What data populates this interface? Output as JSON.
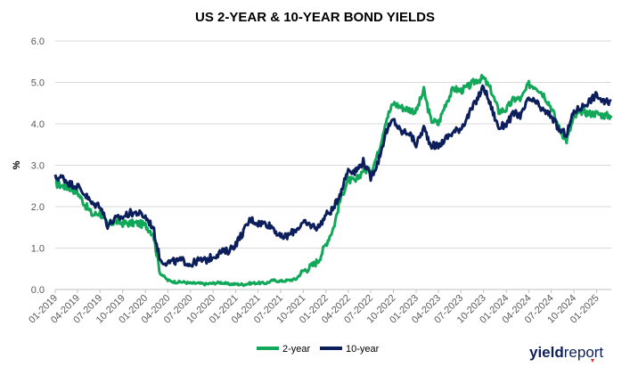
{
  "chart_data": {
    "type": "line",
    "title": "US 2-YEAR & 10-YEAR BOND YIELDS",
    "ylabel": "%",
    "xlabel": "",
    "ylim": [
      0,
      6
    ],
    "yticks": [
      "0.0",
      "1.0",
      "2.0",
      "3.0",
      "4.0",
      "5.0",
      "6.0"
    ],
    "xticks": [
      "01-2019",
      "04-2019",
      "07-2019",
      "10-2019",
      "01-2020",
      "04-2020",
      "07-2020",
      "10-2020",
      "01-2021",
      "04-2021",
      "07-2021",
      "10-2021",
      "01-2022",
      "04-2022",
      "07-2022",
      "10-2022",
      "01-2023",
      "04-2023",
      "07-2023",
      "10-2023",
      "01-2024",
      "04-2024",
      "07-2024",
      "10-2024",
      "01-2025"
    ],
    "grid": true,
    "legend_position": "bottom",
    "colors": {
      "2-year": "#12a85a",
      "10-year": "#0c1f5c"
    },
    "series": [
      {
        "name": "2-year",
        "x": [
          "2019-01",
          "2019-02",
          "2019-03",
          "2019-04",
          "2019-05",
          "2019-06",
          "2019-07",
          "2019-08",
          "2019-09",
          "2019-10",
          "2019-11",
          "2019-12",
          "2020-01",
          "2020-02",
          "2020-03",
          "2020-04",
          "2020-05",
          "2020-06",
          "2020-07",
          "2020-08",
          "2020-09",
          "2020-10",
          "2020-11",
          "2020-12",
          "2021-01",
          "2021-02",
          "2021-03",
          "2021-04",
          "2021-05",
          "2021-06",
          "2021-07",
          "2021-08",
          "2021-09",
          "2021-10",
          "2021-11",
          "2021-12",
          "2022-01",
          "2022-02",
          "2022-03",
          "2022-04",
          "2022-05",
          "2022-06",
          "2022-07",
          "2022-08",
          "2022-09",
          "2022-10",
          "2022-11",
          "2022-12",
          "2023-01",
          "2023-02",
          "2023-03",
          "2023-04",
          "2023-05",
          "2023-06",
          "2023-07",
          "2023-08",
          "2023-09",
          "2023-10",
          "2023-11",
          "2023-12",
          "2024-01",
          "2024-02",
          "2024-03",
          "2024-04",
          "2024-05",
          "2024-06",
          "2024-07",
          "2024-08",
          "2024-09",
          "2024-10",
          "2024-11",
          "2024-12",
          "2025-01",
          "2025-02",
          "2025-03"
        ],
        "values": [
          2.55,
          2.5,
          2.45,
          2.35,
          2.05,
          1.8,
          1.85,
          1.55,
          1.65,
          1.6,
          1.6,
          1.6,
          1.55,
          1.35,
          0.4,
          0.22,
          0.18,
          0.18,
          0.15,
          0.15,
          0.13,
          0.15,
          0.17,
          0.13,
          0.13,
          0.12,
          0.15,
          0.16,
          0.15,
          0.22,
          0.2,
          0.22,
          0.25,
          0.45,
          0.55,
          0.7,
          1.1,
          1.5,
          2.2,
          2.65,
          2.6,
          2.9,
          2.85,
          3.3,
          4.1,
          4.5,
          4.4,
          4.35,
          4.3,
          4.8,
          4.1,
          4.0,
          4.5,
          4.85,
          4.8,
          4.9,
          5.05,
          5.1,
          4.8,
          4.3,
          4.35,
          4.6,
          4.6,
          4.95,
          4.9,
          4.7,
          4.4,
          3.9,
          3.6,
          4.15,
          4.3,
          4.25,
          4.25,
          4.2,
          4.2
        ]
      },
      {
        "name": "10-year",
        "x": [
          "2019-01",
          "2019-02",
          "2019-03",
          "2019-04",
          "2019-05",
          "2019-06",
          "2019-07",
          "2019-08",
          "2019-09",
          "2019-10",
          "2019-11",
          "2019-12",
          "2020-01",
          "2020-02",
          "2020-03",
          "2020-04",
          "2020-05",
          "2020-06",
          "2020-07",
          "2020-08",
          "2020-09",
          "2020-10",
          "2020-11",
          "2020-12",
          "2021-01",
          "2021-02",
          "2021-03",
          "2021-04",
          "2021-05",
          "2021-06",
          "2021-07",
          "2021-08",
          "2021-09",
          "2021-10",
          "2021-11",
          "2021-12",
          "2022-01",
          "2022-02",
          "2022-03",
          "2022-04",
          "2022-05",
          "2022-06",
          "2022-07",
          "2022-08",
          "2022-09",
          "2022-10",
          "2022-11",
          "2022-12",
          "2023-01",
          "2023-02",
          "2023-03",
          "2023-04",
          "2023-05",
          "2023-06",
          "2023-07",
          "2023-08",
          "2023-09",
          "2023-10",
          "2023-11",
          "2023-12",
          "2024-01",
          "2024-02",
          "2024-03",
          "2024-04",
          "2024-05",
          "2024-06",
          "2024-07",
          "2024-08",
          "2024-09",
          "2024-10",
          "2024-11",
          "2024-12",
          "2025-01",
          "2025-02",
          "2025-03"
        ],
        "values": [
          2.7,
          2.7,
          2.55,
          2.5,
          2.3,
          2.05,
          2.05,
          1.55,
          1.7,
          1.75,
          1.85,
          1.85,
          1.75,
          1.5,
          0.7,
          0.65,
          0.68,
          0.7,
          0.6,
          0.7,
          0.7,
          0.8,
          0.9,
          0.93,
          1.1,
          1.4,
          1.7,
          1.6,
          1.6,
          1.5,
          1.25,
          1.3,
          1.45,
          1.6,
          1.55,
          1.5,
          1.8,
          1.95,
          2.35,
          2.9,
          2.85,
          3.1,
          2.7,
          3.1,
          3.8,
          4.1,
          3.8,
          3.8,
          3.5,
          3.9,
          3.5,
          3.45,
          3.65,
          3.8,
          3.9,
          4.2,
          4.55,
          4.9,
          4.4,
          3.9,
          4.0,
          4.25,
          4.2,
          4.6,
          4.5,
          4.3,
          4.2,
          3.85,
          3.75,
          4.3,
          4.4,
          4.55,
          4.7,
          4.5,
          4.55
        ]
      }
    ]
  },
  "legend": {
    "items": [
      "2-year",
      "10-year"
    ]
  },
  "brand": {
    "part1": "yield",
    "part2": "report"
  }
}
